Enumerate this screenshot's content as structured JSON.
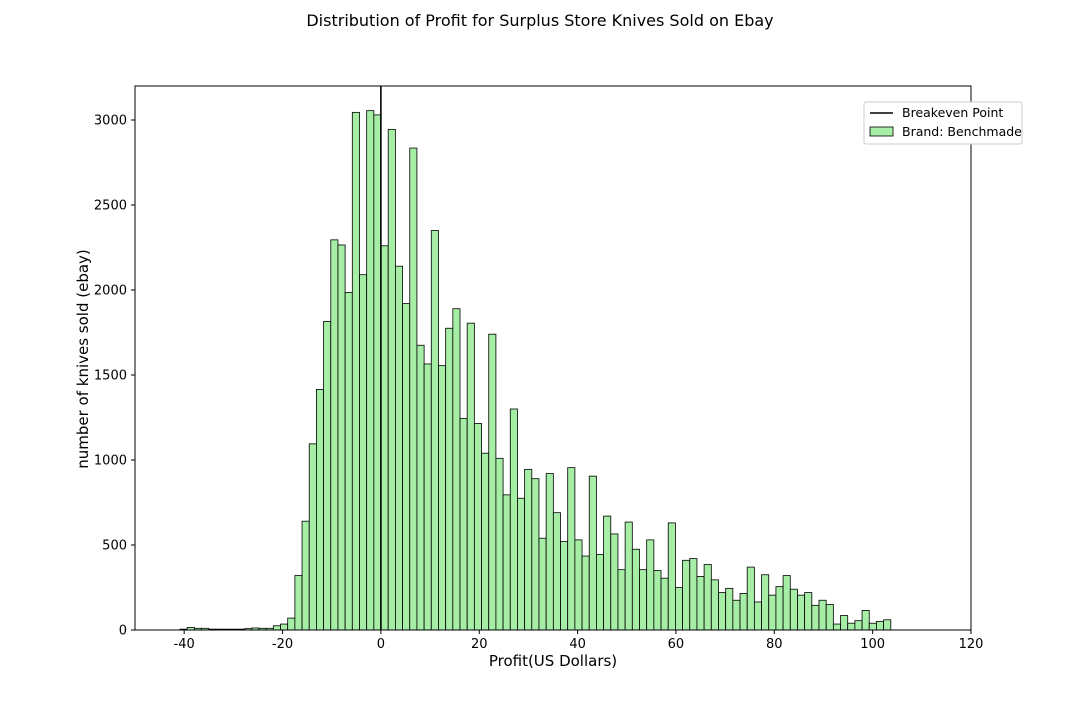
{
  "chart_data": {
    "type": "bar",
    "title": "Distribution of Profit for Surplus Store Knives Sold on Ebay",
    "xlabel": "Profit(US Dollars)",
    "ylabel": "number of knives sold (ebay)",
    "xlim": [
      -50,
      120
    ],
    "ylim": [
      0,
      3200
    ],
    "xticks": [
      -40,
      -20,
      0,
      20,
      40,
      60,
      80,
      100,
      120
    ],
    "yticks": [
      0,
      500,
      1000,
      1500,
      2000,
      2500,
      3000
    ],
    "grid": false,
    "legend_position": "top-right",
    "bar_color": "#a6eea6",
    "edge_color": "#000000",
    "bin_width": 1.46,
    "bin_start": -40.85,
    "series": [
      {
        "name": "Brand: Benchmade",
        "values": [
          5,
          15,
          10,
          10,
          5,
          5,
          5,
          5,
          5,
          8,
          12,
          10,
          10,
          25,
          35,
          70,
          320,
          640,
          1095,
          1415,
          1815,
          2295,
          2265,
          1985,
          3045,
          2090,
          3055,
          3030,
          2260,
          2945,
          2140,
          1920,
          2835,
          1675,
          1565,
          2350,
          1555,
          1775,
          1890,
          1245,
          1805,
          1215,
          1040,
          1740,
          1010,
          795,
          1300,
          775,
          945,
          890,
          540,
          920,
          690,
          520,
          955,
          530,
          435,
          905,
          445,
          670,
          565,
          355,
          635,
          475,
          355,
          530,
          350,
          305,
          630,
          250,
          410,
          420,
          315,
          385,
          295,
          220,
          245,
          175,
          215,
          370,
          165,
          325,
          205,
          255,
          320,
          240,
          205,
          220,
          145,
          175,
          150,
          35,
          85,
          40,
          55,
          115,
          40,
          50,
          60
        ]
      }
    ],
    "reference_lines": [
      {
        "name": "Breakeven Point",
        "x": 0,
        "color": "#000000"
      }
    ]
  }
}
